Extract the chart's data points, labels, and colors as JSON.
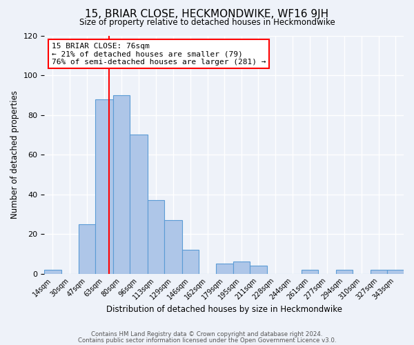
{
  "title": "15, BRIAR CLOSE, HECKMONDWIKE, WF16 9JH",
  "subtitle": "Size of property relative to detached houses in Heckmondwike",
  "xlabel": "Distribution of detached houses by size in Heckmondwike",
  "ylabel": "Number of detached properties",
  "bin_labels": [
    "14sqm",
    "30sqm",
    "47sqm",
    "63sqm",
    "80sqm",
    "96sqm",
    "113sqm",
    "129sqm",
    "146sqm",
    "162sqm",
    "179sqm",
    "195sqm",
    "211sqm",
    "228sqm",
    "244sqm",
    "261sqm",
    "277sqm",
    "294sqm",
    "310sqm",
    "327sqm",
    "343sqm"
  ],
  "bin_edges": [
    14,
    30,
    47,
    63,
    80,
    96,
    113,
    129,
    146,
    162,
    179,
    195,
    211,
    228,
    244,
    261,
    277,
    294,
    310,
    327,
    343,
    359
  ],
  "counts": [
    2,
    0,
    25,
    88,
    90,
    70,
    37,
    27,
    12,
    0,
    5,
    6,
    4,
    0,
    0,
    2,
    0,
    2,
    0,
    2,
    2
  ],
  "bar_color": "#aec6e8",
  "bar_edge_color": "#5b9bd5",
  "reference_line_x": 76,
  "reference_line_color": "red",
  "annotation_line1": "15 BRIAR CLOSE: 76sqm",
  "annotation_line2": "← 21% of detached houses are smaller (79)",
  "annotation_line3": "76% of semi-detached houses are larger (281) →",
  "annotation_box_color": "white",
  "annotation_box_edge_color": "red",
  "ylim": [
    0,
    120
  ],
  "yticks": [
    0,
    20,
    40,
    60,
    80,
    100,
    120
  ],
  "footer1": "Contains HM Land Registry data © Crown copyright and database right 2024.",
  "footer2": "Contains public sector information licensed under the Open Government Licence v3.0.",
  "background_color": "#eef2f9",
  "grid_color": "white"
}
